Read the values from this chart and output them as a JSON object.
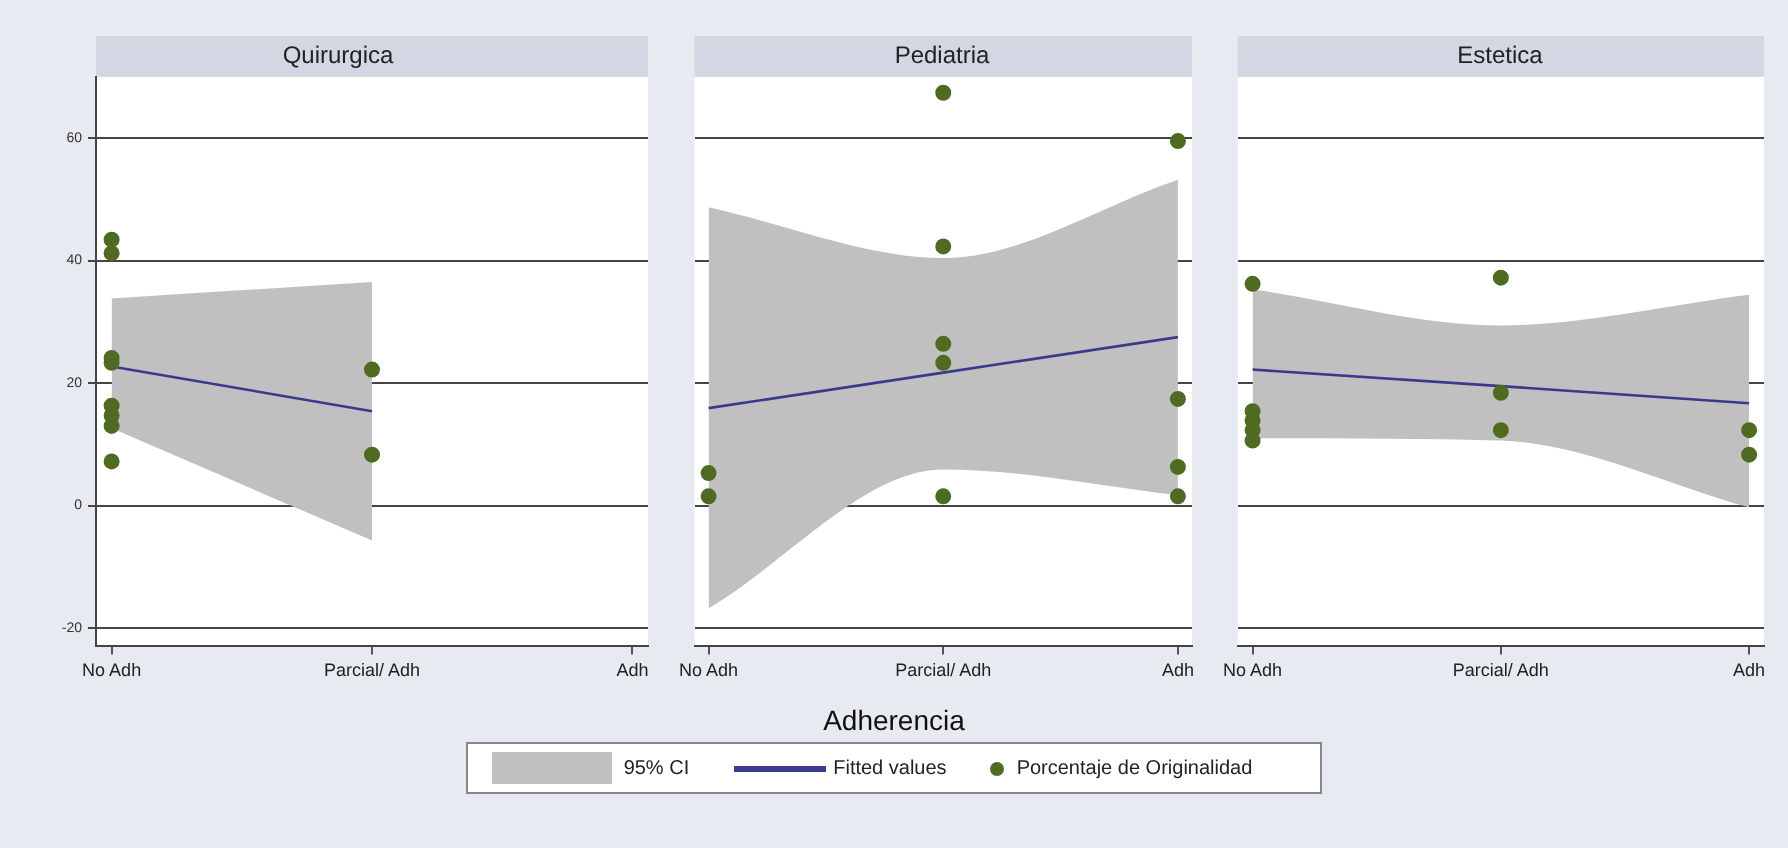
{
  "chart_data": [
    {
      "type": "scatter",
      "title": "Quirurgica",
      "categories": [
        "No Adh",
        "Parcial/ Adh",
        "Adh"
      ],
      "ylim": [
        -23,
        70
      ],
      "yticks": [
        -20,
        0,
        20,
        40,
        60
      ],
      "grid": "y",
      "marker": "circle",
      "series": [
        {
          "type": "line",
          "marker": "none",
          "color": "#3a3a8c",
          "values": [
            22.7,
            15.4,
            null
          ],
          "lower": [
            12.6,
            -5.7,
            null
          ],
          "upper": [
            33.8,
            36.5,
            null
          ]
        },
        {
          "color": "#4f6b22",
          "x": [
            "No Adh",
            "No Adh",
            "No Adh",
            "No Adh",
            "No Adh",
            "No Adh",
            "No Adh",
            "No Adh",
            "Parcial/ Adh",
            "Parcial/ Adh"
          ],
          "values": [
            43.4,
            41.2,
            24.1,
            23.3,
            16.3,
            14.7,
            13,
            7.2,
            22.2,
            8.3
          ]
        }
      ]
    },
    {
      "type": "scatter",
      "title": "Pediatria",
      "xlabel": "Adherencia",
      "legend": "bottom",
      "annotations": [
        "95% CI"
      ],
      "tick_labels": "x",
      "categories": [
        "No Adh",
        "Parcial/ Adh",
        "Adh"
      ],
      "ylim": [
        -23,
        70
      ],
      "yticks": [
        -20,
        0,
        20,
        40,
        60
      ],
      "grid": "y",
      "marker": "circle",
      "series": [
        {
          "type": "line",
          "marker": "none",
          "name": "Fitted values",
          "color": "#3a3a8c",
          "values": [
            15.9,
            21.7,
            27.5
          ],
          "lower": [
            -16.8,
            5.9,
            1.7
          ],
          "upper": [
            48.7,
            40.4,
            53.2
          ]
        },
        {
          "name": "Porcentaje de Originalidad",
          "color": "#4f6b22",
          "x": [
            "No Adh",
            "No Adh",
            "Parcial/ Adh",
            "Parcial/ Adh",
            "Parcial/ Adh",
            "Parcial/ Adh",
            "Parcial/ Adh",
            "Adh",
            "Adh",
            "Adh",
            "Adh"
          ],
          "values": [
            5.3,
            1.5,
            67.4,
            42.3,
            26.4,
            23.3,
            1.5,
            59.5,
            17.4,
            6.3,
            1.5
          ]
        }
      ]
    },
    {
      "type": "scatter",
      "title": "Estetica",
      "tick_labels": "x",
      "categories": [
        "No Adh",
        "Parcial/ Adh",
        "Adh"
      ],
      "ylim": [
        -23,
        70
      ],
      "yticks": [
        -20,
        0,
        20,
        40,
        60
      ],
      "grid": "y",
      "marker": "circle",
      "series": [
        {
          "type": "line",
          "marker": "none",
          "color": "#3a3a8c",
          "values": [
            22.2,
            19.5,
            16.7
          ],
          "lower": [
            11,
            10.6,
            -0.3
          ],
          "upper": [
            35.3,
            29.4,
            34.4
          ]
        },
        {
          "color": "#4f6b22",
          "x": [
            "No Adh",
            "No Adh",
            "No Adh",
            "No Adh",
            "No Adh",
            "Parcial/ Adh",
            "Parcial/ Adh",
            "Parcial/ Adh",
            "Adh",
            "Adh"
          ],
          "values": [
            36.2,
            15.4,
            13.9,
            12.3,
            10.6,
            37.2,
            18.4,
            12.3,
            12.3,
            8.3
          ]
        }
      ]
    }
  ]
}
